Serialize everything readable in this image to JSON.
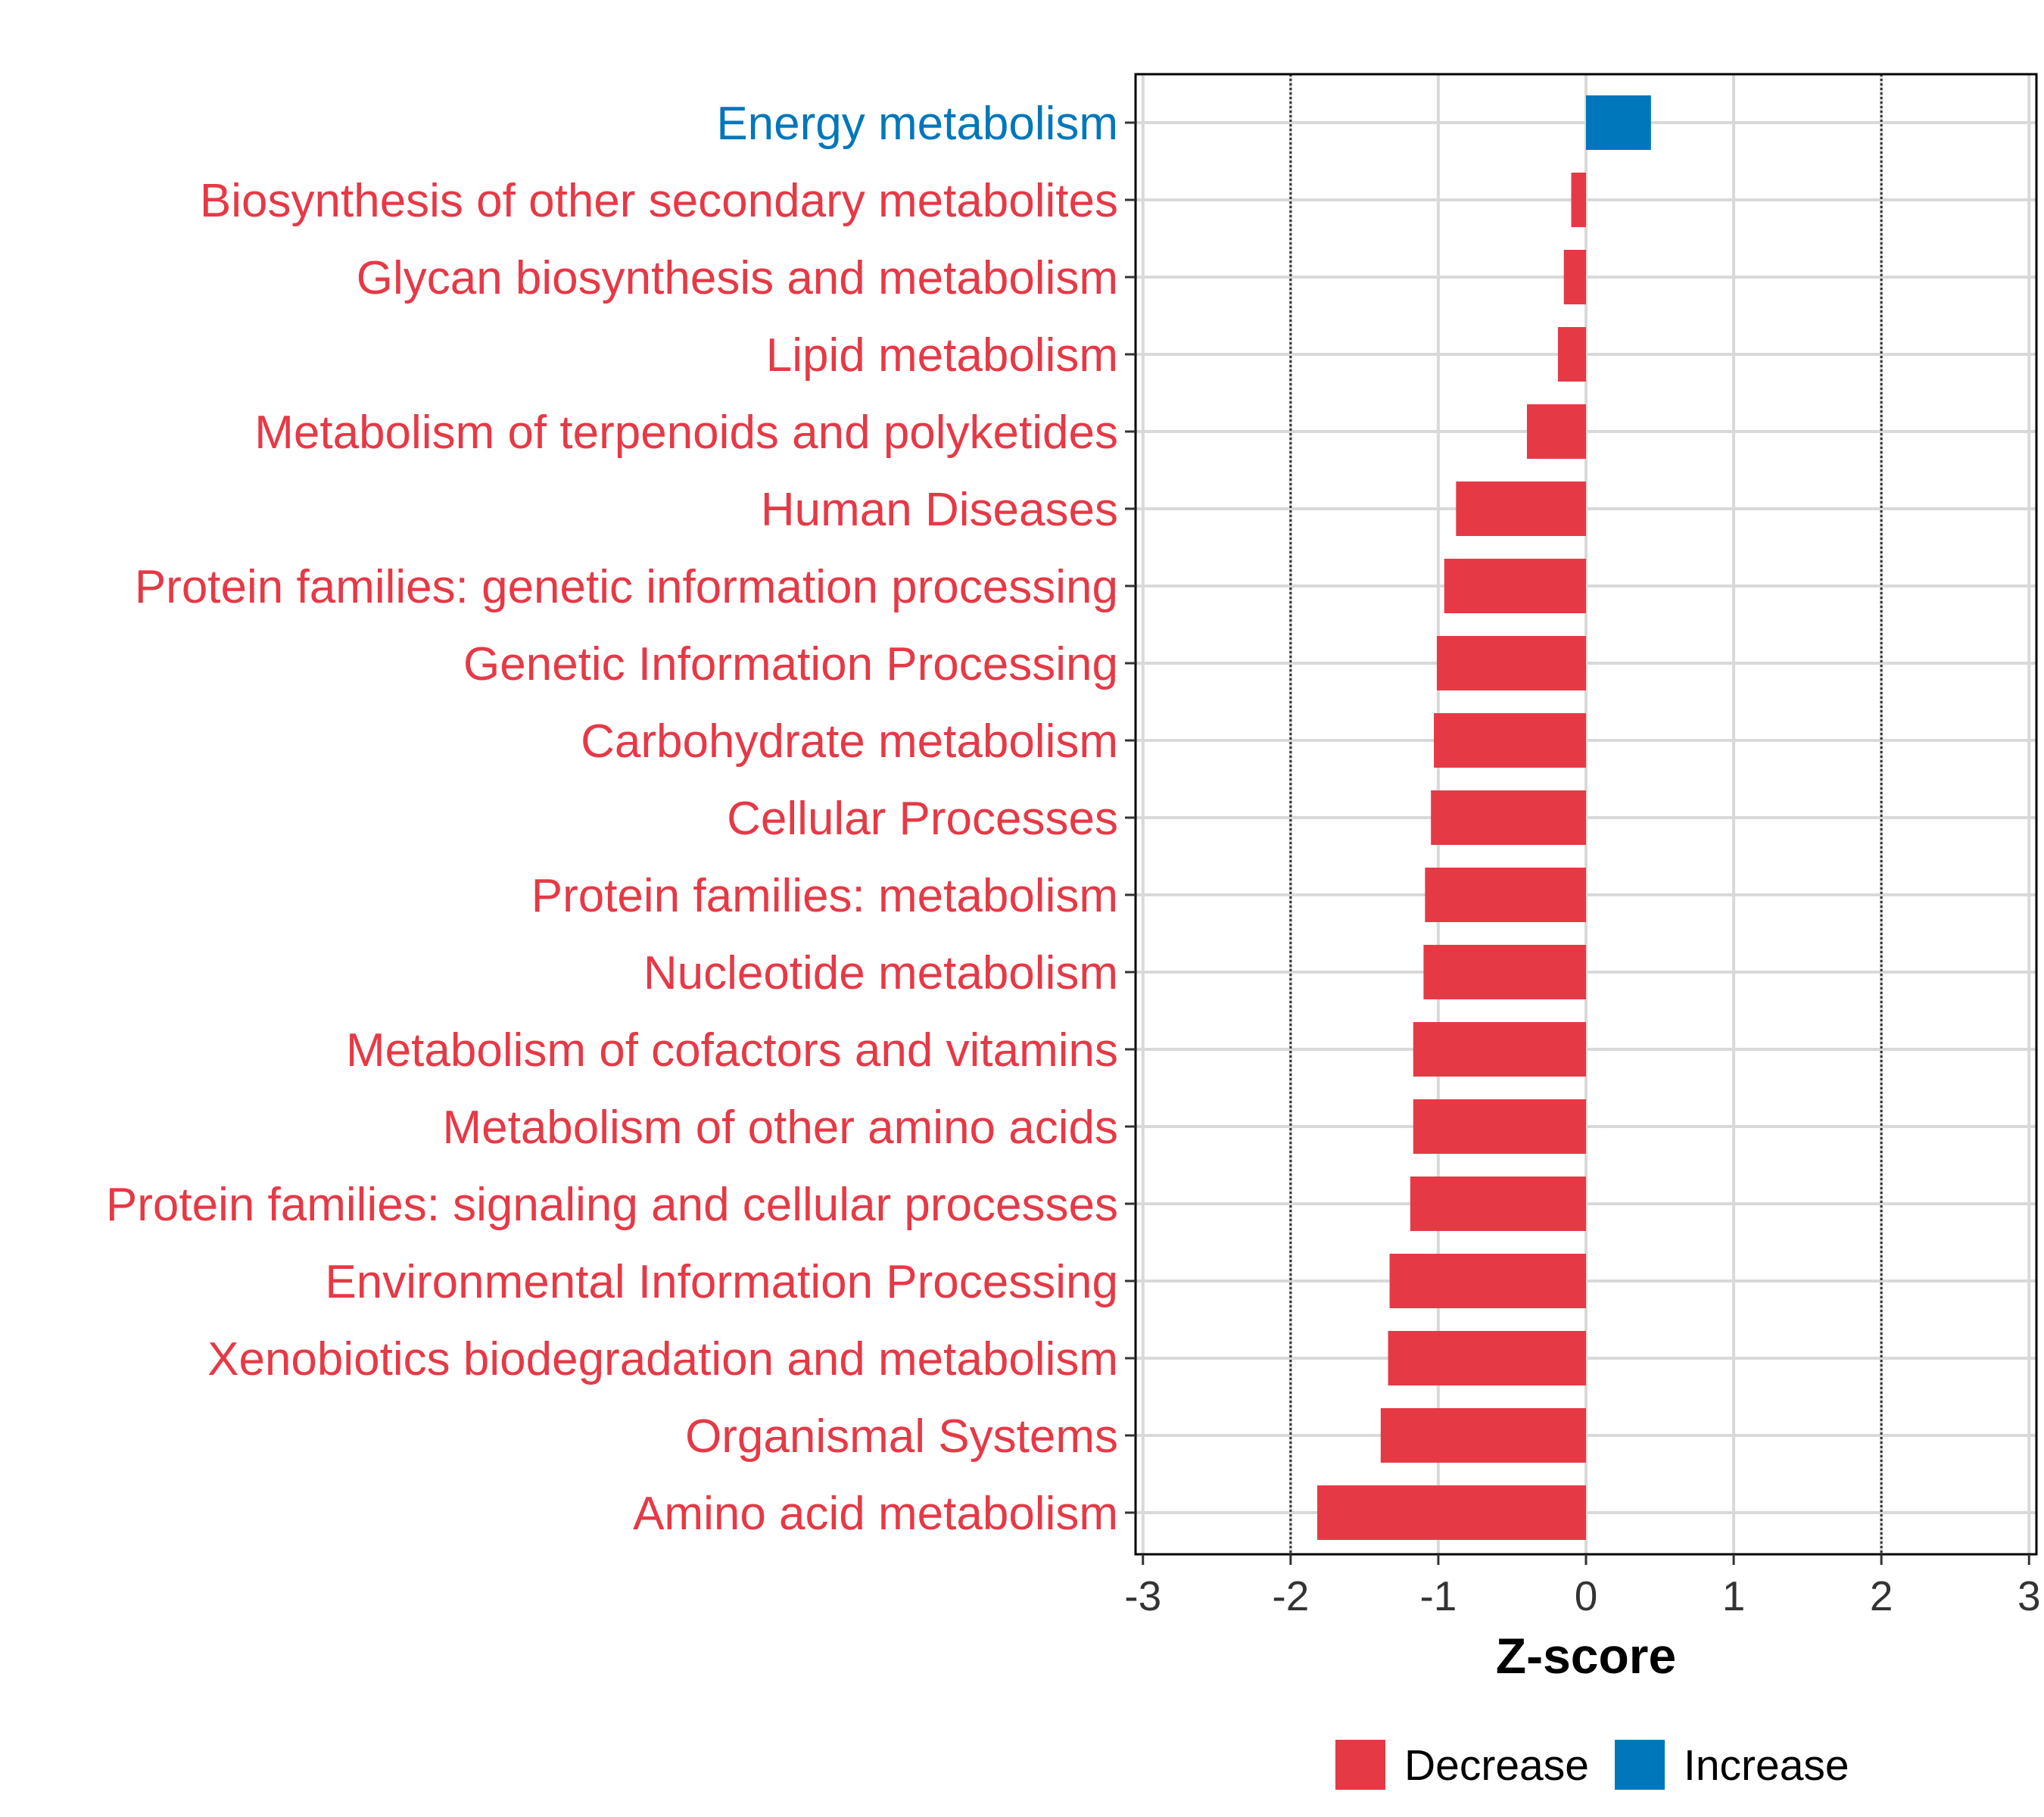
{
  "chart_data": {
    "type": "bar",
    "orientation": "horizontal",
    "categories": [
      "Energy metabolism",
      "Biosynthesis of other secondary metabolites",
      "Glycan biosynthesis and metabolism",
      "Lipid metabolism",
      "Metabolism of terpenoids and polyketides",
      "Human Diseases",
      "Protein families: genetic information processing",
      "Genetic Information Processing",
      "Carbohydrate metabolism",
      "Cellular Processes",
      "Protein families: metabolism",
      "Nucleotide metabolism",
      "Metabolism of cofactors and vitamins",
      "Metabolism of other amino acids",
      "Protein families: signaling and cellular processes",
      "Environmental Information Processing",
      "Xenobiotics biodegradation and metabolism",
      "Organismal Systems",
      "Amino acid metabolism"
    ],
    "values": [
      0.44,
      -0.1,
      -0.15,
      -0.19,
      -0.4,
      -0.88,
      -0.96,
      -1.01,
      -1.03,
      -1.05,
      -1.09,
      -1.1,
      -1.17,
      -1.17,
      -1.19,
      -1.33,
      -1.34,
      -1.39,
      -1.82
    ],
    "groups": [
      "Increase",
      "Decrease",
      "Decrease",
      "Decrease",
      "Decrease",
      "Decrease",
      "Decrease",
      "Decrease",
      "Decrease",
      "Decrease",
      "Decrease",
      "Decrease",
      "Decrease",
      "Decrease",
      "Decrease",
      "Decrease",
      "Decrease",
      "Decrease",
      "Decrease"
    ],
    "title": "",
    "xlabel": "Z-score",
    "ylabel": "",
    "xlim": [
      -3.05,
      3.05
    ],
    "xticks": [
      -3,
      -2,
      -1,
      0,
      1,
      2,
      3
    ],
    "xtick_labels": [
      "-3",
      "-2",
      "-1",
      "0",
      "1",
      "2",
      "3"
    ],
    "reference_lines": [
      -2,
      2
    ],
    "grid": true,
    "legend": {
      "position": "bottom",
      "entries": [
        {
          "label": "Decrease",
          "color": "#E63946"
        },
        {
          "label": "Increase",
          "color": "#0077BB"
        }
      ]
    },
    "colors": {
      "Decrease": "#E63946",
      "Increase": "#0077BB"
    }
  }
}
